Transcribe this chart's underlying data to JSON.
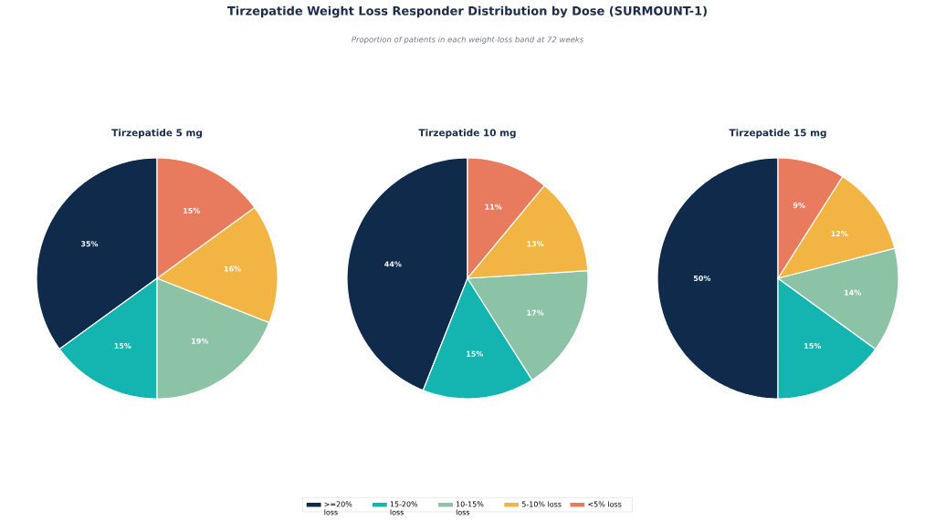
{
  "chart_data": [
    {
      "type": "pie",
      "title": "Tirzepatide 5 mg",
      "annotations": [
        "Tirzepatide Weight Loss Responder Distribution by Dose (SURMOUNT-1)",
        "Proportion of patients in each weight-loss band at 72 weeks"
      ],
      "categories": [
        null,
        null,
        null,
        null,
        null
      ],
      "values": [
        35,
        15,
        19,
        16,
        15
      ],
      "value_labels": [
        "35%",
        "15%",
        "19%",
        "16%",
        "15%"
      ],
      "colors": [
        "#0f2a4a",
        "#14b5b0",
        "#8cc2a6",
        "#f2b544",
        "#e87a5d"
      ]
    },
    {
      "type": "pie",
      "title": "Tirzepatide 10 mg",
      "legend": "bottom",
      "categories": [
        ">=20% loss",
        "15-20% loss",
        "10-15% loss",
        "5-10% loss",
        "<5% loss"
      ],
      "values": [
        44,
        15,
        17,
        13,
        11
      ],
      "value_labels": [
        "44%",
        "15%",
        "17%",
        "13%",
        "11%"
      ],
      "colors": [
        "#0f2a4a",
        "#14b5b0",
        "#8cc2a6",
        "#f2b544",
        "#e87a5d"
      ]
    },
    {
      "type": "pie",
      "title": "Tirzepatide 15 mg",
      "categories": [
        null,
        null,
        null,
        null,
        null
      ],
      "values": [
        50,
        15,
        14,
        12,
        9
      ],
      "value_labels": [
        "50%",
        "15%",
        "14%",
        "12%",
        "9%"
      ],
      "colors": [
        "#0f2a4a",
        "#14b5b0",
        "#8cc2a6",
        "#f2b544",
        "#e87a5d"
      ]
    }
  ]
}
